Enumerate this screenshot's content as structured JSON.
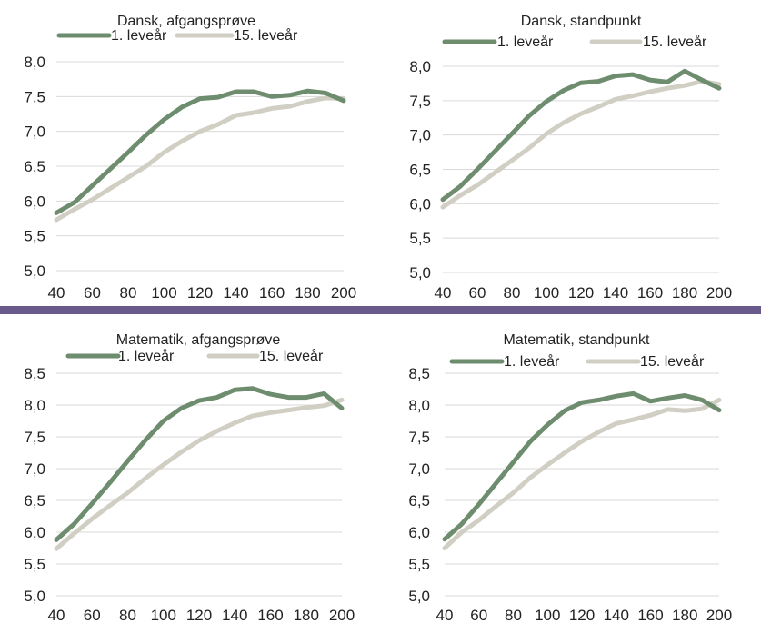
{
  "colors": {
    "series1": "#6e8c6e",
    "series2": "#d1cfc4",
    "grid": "#d9d9d9",
    "divider": "#6a5a8c"
  },
  "chart_data": [
    {
      "type": "line",
      "title": "Dansk, afgangsprøve",
      "x": [
        40,
        50,
        60,
        70,
        80,
        90,
        100,
        110,
        120,
        130,
        140,
        150,
        160,
        170,
        180,
        190,
        200
      ],
      "x_ticks": [
        40,
        60,
        80,
        100,
        120,
        140,
        160,
        180,
        200
      ],
      "y_ticks": [
        "5,0",
        "5,5",
        "6,0",
        "6,5",
        "7,0",
        "7,5",
        "8,0"
      ],
      "ylim": [
        5.0,
        8.0
      ],
      "grid": true,
      "legend": "top",
      "series": [
        {
          "name": "1. leveår",
          "values": [
            5.83,
            5.98,
            6.22,
            6.46,
            6.7,
            6.95,
            7.17,
            7.35,
            7.47,
            7.49,
            7.57,
            7.57,
            7.5,
            7.52,
            7.58,
            7.55,
            7.44
          ]
        },
        {
          "name": "15. leveår",
          "values": [
            5.73,
            5.88,
            6.02,
            6.18,
            6.34,
            6.5,
            6.7,
            6.86,
            7.0,
            7.1,
            7.23,
            7.27,
            7.33,
            7.36,
            7.43,
            7.48,
            7.47
          ]
        }
      ]
    },
    {
      "type": "line",
      "title": "Dansk, standpunkt",
      "x": [
        40,
        50,
        60,
        70,
        80,
        90,
        100,
        110,
        120,
        130,
        140,
        150,
        160,
        170,
        180,
        190,
        200
      ],
      "x_ticks": [
        40,
        60,
        80,
        100,
        120,
        140,
        160,
        180,
        200
      ],
      "y_ticks": [
        "5,0",
        "5,5",
        "6,0",
        "6,5",
        "7,0",
        "7,5",
        "8,0"
      ],
      "ylim": [
        5.0,
        8.0
      ],
      "grid": true,
      "legend": "top",
      "series": [
        {
          "name": "1. leveår",
          "values": [
            6.06,
            6.25,
            6.5,
            6.76,
            7.02,
            7.28,
            7.49,
            7.65,
            7.76,
            7.78,
            7.86,
            7.88,
            7.8,
            7.77,
            7.93,
            7.8,
            7.68
          ]
        },
        {
          "name": "15. leveår",
          "values": [
            5.95,
            6.12,
            6.27,
            6.45,
            6.63,
            6.81,
            7.02,
            7.18,
            7.31,
            7.41,
            7.52,
            7.57,
            7.63,
            7.68,
            7.72,
            7.78,
            7.74
          ]
        }
      ]
    },
    {
      "type": "line",
      "title": "Matematik, afgangsprøve",
      "x": [
        40,
        50,
        60,
        70,
        80,
        90,
        100,
        110,
        120,
        130,
        140,
        150,
        160,
        170,
        180,
        190,
        200
      ],
      "x_ticks": [
        40,
        60,
        80,
        100,
        120,
        140,
        160,
        180,
        200
      ],
      "y_ticks": [
        "5,0",
        "5,5",
        "6,0",
        "6,5",
        "7,0",
        "7,5",
        "8,0",
        "8,5"
      ],
      "ylim": [
        5.0,
        8.5
      ],
      "grid": true,
      "legend": "top",
      "series": [
        {
          "name": "1. leveår",
          "values": [
            5.88,
            6.13,
            6.45,
            6.78,
            7.12,
            7.45,
            7.75,
            7.95,
            8.07,
            8.12,
            8.24,
            8.26,
            8.17,
            8.12,
            8.12,
            8.18,
            7.95
          ]
        },
        {
          "name": "15. leveår",
          "values": [
            5.74,
            5.98,
            6.21,
            6.42,
            6.62,
            6.85,
            7.06,
            7.26,
            7.44,
            7.59,
            7.72,
            7.83,
            7.88,
            7.92,
            7.96,
            7.99,
            8.08
          ]
        }
      ]
    },
    {
      "type": "line",
      "title": "Matematik, standpunkt",
      "x": [
        40,
        50,
        60,
        70,
        80,
        90,
        100,
        110,
        120,
        130,
        140,
        150,
        160,
        170,
        180,
        190,
        200
      ],
      "x_ticks": [
        40,
        60,
        80,
        100,
        120,
        140,
        160,
        180,
        200
      ],
      "y_ticks": [
        "5,0",
        "5,5",
        "6,0",
        "6,5",
        "7,0",
        "7,5",
        "8,0",
        "8,5"
      ],
      "ylim": [
        5.0,
        8.5
      ],
      "grid": true,
      "legend": "top",
      "series": [
        {
          "name": "1. leveår",
          "values": [
            5.89,
            6.13,
            6.44,
            6.77,
            7.1,
            7.43,
            7.69,
            7.91,
            8.04,
            8.08,
            8.14,
            8.18,
            8.06,
            8.11,
            8.15,
            8.08,
            7.92
          ]
        },
        {
          "name": "15. leveår",
          "values": [
            5.75,
            6.0,
            6.19,
            6.41,
            6.62,
            6.86,
            7.06,
            7.25,
            7.43,
            7.58,
            7.71,
            7.77,
            7.84,
            7.93,
            7.91,
            7.94,
            8.08
          ]
        }
      ]
    }
  ]
}
